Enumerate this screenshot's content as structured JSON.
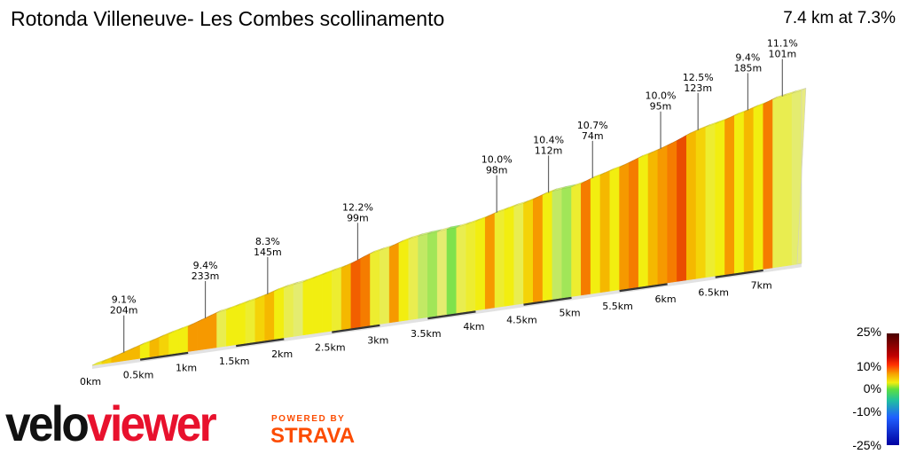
{
  "header": {
    "title": "Rotonda Villeneuve- Les Combes scollinamento",
    "summary": "7.4 km at 7.3%"
  },
  "branding": {
    "logo_part1": "velo",
    "logo_part2": "viewer",
    "powered_by": "POWERED BY",
    "strava": "STRAVA"
  },
  "chart_data": {
    "type": "area",
    "title": "Rotonda Villeneuve- Les Combes scollinamento",
    "distance_km": 7.4,
    "average_gradient_pct": 7.3,
    "segment_length_km": 0.1,
    "gradients_pct": [
      6,
      8,
      9,
      9,
      9,
      7,
      9,
      8,
      7,
      7,
      10,
      10,
      10,
      5,
      7,
      7,
      6,
      8,
      9,
      7,
      5,
      4,
      7,
      7,
      7,
      6,
      9,
      12,
      11,
      6,
      5,
      10,
      7,
      5,
      3,
      2,
      4,
      1,
      5,
      6,
      7,
      10,
      6,
      7,
      5,
      8,
      10,
      7,
      3,
      2,
      6,
      11,
      7,
      9,
      7,
      10,
      11,
      7,
      9,
      10,
      11,
      13,
      9,
      8,
      6,
      7,
      10,
      7,
      9,
      7,
      11,
      5,
      5,
      4
    ],
    "x_ticks": [
      {
        "km": 0,
        "label": "0km"
      },
      {
        "km": 0.5,
        "label": "0.5km"
      },
      {
        "km": 1,
        "label": "1km"
      },
      {
        "km": 1.5,
        "label": "1.5km"
      },
      {
        "km": 2,
        "label": "2km"
      },
      {
        "km": 2.5,
        "label": "2.5km"
      },
      {
        "km": 3,
        "label": "3km"
      },
      {
        "km": 3.5,
        "label": "3.5km"
      },
      {
        "km": 4,
        "label": "4km"
      },
      {
        "km": 4.5,
        "label": "4.5km"
      },
      {
        "km": 5,
        "label": "5km"
      },
      {
        "km": 5.5,
        "label": "5.5km"
      },
      {
        "km": 6,
        "label": "6km"
      },
      {
        "km": 6.5,
        "label": "6.5km"
      },
      {
        "km": 7,
        "label": "7km"
      }
    ],
    "annotations": [
      {
        "km": 0.33,
        "gradient": "9.1%",
        "length": "204m"
      },
      {
        "km": 1.18,
        "gradient": "9.4%",
        "length": "233m"
      },
      {
        "km": 1.83,
        "gradient": "8.3%",
        "length": "145m"
      },
      {
        "km": 2.77,
        "gradient": "12.2%",
        "length": "99m"
      },
      {
        "km": 4.22,
        "gradient": "10.0%",
        "length": "98m"
      },
      {
        "km": 4.76,
        "gradient": "10.4%",
        "length": "112m"
      },
      {
        "km": 5.22,
        "gradient": "10.7%",
        "length": "74m"
      },
      {
        "km": 5.93,
        "gradient": "10.0%",
        "length": "95m"
      },
      {
        "km": 6.32,
        "gradient": "12.5%",
        "length": "123m"
      },
      {
        "km": 6.84,
        "gradient": "9.4%",
        "length": "185m"
      },
      {
        "km": 7.2,
        "gradient": "11.1%",
        "length": "101m"
      }
    ],
    "legend": {
      "labels": [
        "25%",
        "10%",
        "0%",
        "-10%",
        "-25%"
      ],
      "placement": "bottom-right"
    }
  },
  "colors": {
    "green": "#5ddf40",
    "pale_yellow": "#e4ec70",
    "yellow": "#f2ee10",
    "amber": "#f5b800",
    "orange": "#f78a00",
    "red_orange": "#f05000",
    "dark_red": "#5a0000"
  }
}
